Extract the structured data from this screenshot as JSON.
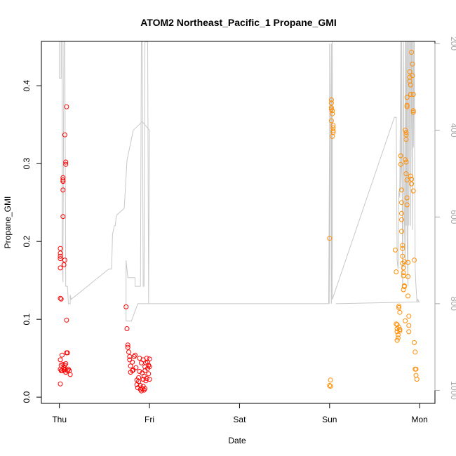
{
  "chart_data": {
    "type": "scatter",
    "title": "ATOM2 Northeast_Pacific_1 Propane_GMI",
    "xlabel": "Date",
    "ylabel": "Propane_GMI",
    "x_ticks": [
      {
        "label": "Thu",
        "day": 0
      },
      {
        "label": "Fri",
        "day": 1
      },
      {
        "label": "Sat",
        "day": 2
      },
      {
        "label": "Sun",
        "day": 3
      },
      {
        "label": "Mon",
        "day": 4
      }
    ],
    "xlim": [
      -0.2,
      4.17
    ],
    "ylim": [
      -0.008,
      0.457
    ],
    "y_ticks": [
      0.0,
      0.1,
      0.2,
      0.3,
      0.4
    ],
    "y_tick_labels": [
      "0.0",
      "0.1",
      "0.2",
      "0.3",
      "0.4"
    ],
    "right_axis": {
      "ticks": [
        200,
        400,
        600,
        800,
        1000
      ],
      "labels": [
        "200",
        "400",
        "600",
        "800",
        "1000"
      ],
      "lim_top": 195,
      "lim_bottom": 1030,
      "color": "#a6a6a6"
    },
    "grid": false,
    "colors": {
      "series1": "#ff0000",
      "series2": "#ff8c00",
      "secondary": "#c8c8c8"
    },
    "series": [
      {
        "color": "#ff0000",
        "points": [
          [
            0.01,
            0.191
          ],
          [
            0.01,
            0.185
          ],
          [
            0.01,
            0.181
          ],
          [
            0.01,
            0.178
          ],
          [
            0.01,
            0.166
          ],
          [
            0.01,
            0.127
          ],
          [
            0.02,
            0.126
          ],
          [
            0.01,
            0.048
          ],
          [
            0.02,
            0.041
          ],
          [
            0.01,
            0.036
          ],
          [
            0.01,
            0.017
          ],
          [
            0.02,
            0.034
          ],
          [
            0.04,
            0.282
          ],
          [
            0.04,
            0.279
          ],
          [
            0.04,
            0.277
          ],
          [
            0.04,
            0.266
          ],
          [
            0.04,
            0.232
          ],
          [
            0.05,
            0.17
          ],
          [
            0.06,
            0.176
          ],
          [
            0.06,
            0.337
          ],
          [
            0.07,
            0.302
          ],
          [
            0.07,
            0.299
          ],
          [
            0.08,
            0.373
          ],
          [
            0.08,
            0.099
          ],
          [
            0.03,
            0.054
          ],
          [
            0.04,
            0.042
          ],
          [
            0.05,
            0.038
          ],
          [
            0.05,
            0.035
          ],
          [
            0.06,
            0.041
          ],
          [
            0.06,
            0.035
          ],
          [
            0.07,
            0.043
          ],
          [
            0.08,
            0.057
          ],
          [
            0.09,
            0.057
          ],
          [
            0.1,
            0.036
          ],
          [
            0.11,
            0.034
          ],
          [
            0.12,
            0.029
          ],
          [
            0.07,
            0.032
          ],
          [
            0.09,
            0.034
          ],
          [
            0.03,
            0.034
          ],
          [
            0.74,
            0.116
          ],
          [
            0.75,
            0.088
          ],
          [
            0.76,
            0.067
          ],
          [
            0.76,
            0.064
          ],
          [
            0.77,
            0.058
          ],
          [
            0.78,
            0.048
          ],
          [
            0.78,
            0.052
          ],
          [
            0.79,
            0.04
          ],
          [
            0.79,
            0.032
          ],
          [
            0.81,
            0.034
          ],
          [
            0.81,
            0.045
          ],
          [
            0.82,
            0.035
          ],
          [
            0.83,
            0.052
          ],
          [
            0.84,
            0.054
          ],
          [
            0.85,
            0.038
          ],
          [
            0.86,
            0.022
          ],
          [
            0.86,
            0.016
          ],
          [
            0.87,
            0.012
          ],
          [
            0.88,
            0.025
          ],
          [
            0.88,
            0.02
          ],
          [
            0.89,
            0.05
          ],
          [
            0.89,
            0.033
          ],
          [
            0.9,
            0.01
          ],
          [
            0.9,
            0.015
          ],
          [
            0.91,
            0.044
          ],
          [
            0.91,
            0.008
          ],
          [
            0.92,
            0.031
          ],
          [
            0.92,
            0.011
          ],
          [
            0.93,
            0.023
          ],
          [
            0.93,
            0.048
          ],
          [
            0.94,
            0.009
          ],
          [
            0.94,
            0.027
          ],
          [
            0.95,
            0.039
          ],
          [
            0.95,
            0.034
          ],
          [
            0.96,
            0.021
          ],
          [
            0.96,
            0.044
          ],
          [
            0.97,
            0.024
          ],
          [
            0.97,
            0.05
          ],
          [
            0.98,
            0.037
          ],
          [
            0.98,
            0.045
          ],
          [
            0.99,
            0.041
          ],
          [
            0.99,
            0.03
          ],
          [
            1.0,
            0.049
          ],
          [
            1.0,
            0.039
          ],
          [
            1.0,
            0.023
          ],
          [
            0.93,
            0.014
          ],
          [
            0.95,
            0.011
          ]
        ]
      },
      {
        "color": "#ff8c00",
        "points": [
          [
            3.0,
            0.204
          ],
          [
            3.0,
            0.015
          ],
          [
            3.01,
            0.014
          ],
          [
            3.01,
            0.022
          ],
          [
            3.02,
            0.382
          ],
          [
            3.02,
            0.378
          ],
          [
            3.02,
            0.372
          ],
          [
            3.02,
            0.37
          ],
          [
            3.03,
            0.368
          ],
          [
            3.03,
            0.364
          ],
          [
            3.02,
            0.355
          ],
          [
            3.04,
            0.349
          ],
          [
            3.04,
            0.346
          ],
          [
            3.04,
            0.342
          ],
          [
            3.04,
            0.34
          ],
          [
            3.03,
            0.335
          ],
          [
            3.73,
            0.189
          ],
          [
            3.74,
            0.161
          ],
          [
            3.74,
            0.094
          ],
          [
            3.75,
            0.093
          ],
          [
            3.75,
            0.088
          ],
          [
            3.75,
            0.084
          ],
          [
            3.76,
            0.08
          ],
          [
            3.76,
            0.076
          ],
          [
            3.75,
            0.073
          ],
          [
            3.77,
            0.117
          ],
          [
            3.77,
            0.115
          ],
          [
            3.78,
            0.109
          ],
          [
            3.77,
            0.09
          ],
          [
            3.78,
            0.087
          ],
          [
            3.78,
            0.085
          ],
          [
            3.79,
            0.31
          ],
          [
            3.79,
            0.299
          ],
          [
            3.8,
            0.266
          ],
          [
            3.8,
            0.25
          ],
          [
            3.8,
            0.236
          ],
          [
            3.8,
            0.228
          ],
          [
            3.8,
            0.213
          ],
          [
            3.81,
            0.195
          ],
          [
            3.81,
            0.191
          ],
          [
            3.81,
            0.181
          ],
          [
            3.81,
            0.172
          ],
          [
            3.82,
            0.166
          ],
          [
            3.82,
            0.16
          ],
          [
            3.82,
            0.156
          ],
          [
            3.83,
            0.143
          ],
          [
            3.83,
            0.142
          ],
          [
            3.82,
            0.138
          ],
          [
            3.83,
            0.174
          ],
          [
            3.84,
            0.098
          ],
          [
            3.84,
            0.343
          ],
          [
            3.85,
            0.34
          ],
          [
            3.85,
            0.337
          ],
          [
            3.85,
            0.331
          ],
          [
            3.84,
            0.305
          ],
          [
            3.85,
            0.302
          ],
          [
            3.85,
            0.287
          ],
          [
            3.86,
            0.385
          ],
          [
            3.86,
            0.375
          ],
          [
            3.86,
            0.373
          ],
          [
            3.86,
            0.279
          ],
          [
            3.86,
            0.256
          ],
          [
            3.86,
            0.247
          ],
          [
            3.87,
            0.173
          ],
          [
            3.87,
            0.155
          ],
          [
            3.87,
            0.13
          ],
          [
            3.88,
            0.104
          ],
          [
            3.88,
            0.092
          ],
          [
            3.88,
            0.084
          ],
          [
            3.89,
            0.418
          ],
          [
            3.89,
            0.411
          ],
          [
            3.89,
            0.406
          ],
          [
            3.9,
            0.401
          ],
          [
            3.9,
            0.389
          ],
          [
            3.9,
            0.284
          ],
          [
            3.91,
            0.28
          ],
          [
            3.91,
            0.274
          ],
          [
            3.91,
            0.443
          ],
          [
            3.92,
            0.428
          ],
          [
            3.92,
            0.413
          ],
          [
            3.93,
            0.389
          ],
          [
            3.93,
            0.368
          ],
          [
            3.93,
            0.366
          ],
          [
            3.93,
            0.265
          ],
          [
            3.94,
            0.176
          ],
          [
            3.94,
            0.07
          ],
          [
            3.95,
            0.058
          ],
          [
            3.95,
            0.036
          ],
          [
            3.96,
            0.036
          ],
          [
            3.96,
            0.028
          ],
          [
            3.97,
            0.023
          ]
        ]
      }
    ],
    "secondary_line": {
      "color": "#c8c8c8",
      "axis": "right",
      "points": [
        [
          0.0,
          196
        ],
        [
          0.0,
          200
        ],
        [
          0.0,
          280
        ],
        [
          0.02,
          280
        ],
        [
          0.02,
          196
        ],
        [
          0.03,
          196
        ],
        [
          0.03,
          690
        ],
        [
          0.04,
          750
        ],
        [
          0.04,
          690
        ],
        [
          0.05,
          196
        ],
        [
          0.06,
          196
        ],
        [
          0.07,
          760
        ],
        [
          0.08,
          760
        ],
        [
          0.09,
          760
        ],
        [
          0.1,
          800
        ],
        [
          0.11,
          800
        ],
        [
          0.12,
          800
        ],
        [
          0.12,
          780
        ],
        [
          0.13,
          790
        ],
        [
          0.55,
          720
        ],
        [
          0.58,
          720
        ],
        [
          0.59,
          640
        ],
        [
          0.6,
          630
        ],
        [
          0.61,
          620
        ],
        [
          0.62,
          620
        ],
        [
          0.63,
          600
        ],
        [
          0.64,
          595
        ],
        [
          0.72,
          580
        ],
        [
          0.75,
          470
        ],
        [
          0.82,
          400
        ],
        [
          0.92,
          380
        ],
        [
          1.0,
          400
        ],
        [
          0.99,
          800
        ],
        [
          0.98,
          196
        ],
        [
          0.95,
          196
        ],
        [
          0.94,
          760
        ],
        [
          0.93,
          760
        ],
        [
          0.92,
          196
        ],
        [
          0.91,
          196
        ],
        [
          0.9,
          760
        ],
        [
          0.84,
          760
        ],
        [
          0.84,
          740
        ],
        [
          0.76,
          740
        ],
        [
          0.74,
          700
        ],
        [
          0.74,
          840
        ],
        [
          0.8,
          840
        ],
        [
          0.87,
          800
        ],
        [
          2.99,
          800
        ],
        [
          3.0,
          400
        ],
        [
          3.0,
          200
        ],
        [
          3.0,
          800
        ],
        [
          3.01,
          400
        ],
        [
          3.02,
          200
        ],
        [
          3.02,
          800
        ],
        [
          3.03,
          196
        ],
        [
          3.03,
          790
        ],
        [
          3.72,
          370
        ],
        [
          3.73,
          370
        ],
        [
          3.74,
          370
        ],
        [
          3.75,
          700
        ],
        [
          3.76,
          720
        ],
        [
          3.77,
          540
        ],
        [
          3.78,
          555
        ],
        [
          3.78,
          530
        ],
        [
          3.79,
          196
        ],
        [
          3.79,
          540
        ],
        [
          3.8,
          470
        ],
        [
          3.8,
          196
        ],
        [
          3.81,
          760
        ],
        [
          3.82,
          470
        ],
        [
          3.82,
          196
        ],
        [
          3.83,
          600
        ],
        [
          3.84,
          720
        ],
        [
          3.84,
          196
        ],
        [
          3.85,
          196
        ],
        [
          3.85,
          620
        ],
        [
          3.86,
          196
        ],
        [
          3.86,
          640
        ],
        [
          3.87,
          760
        ],
        [
          3.87,
          196
        ],
        [
          3.88,
          196
        ],
        [
          3.88,
          620
        ],
        [
          3.89,
          196
        ],
        [
          3.9,
          196
        ],
        [
          3.9,
          620
        ],
        [
          3.91,
          196
        ],
        [
          3.92,
          630
        ],
        [
          3.92,
          196
        ],
        [
          3.93,
          196
        ],
        [
          3.93,
          440
        ],
        [
          3.94,
          196
        ],
        [
          3.95,
          720
        ],
        [
          3.96,
          760
        ],
        [
          3.97,
          796
        ],
        [
          3.98,
          790
        ],
        [
          3.99,
          795
        ],
        [
          4.0,
          796
        ],
        [
          3.07,
          800
        ]
      ]
    }
  }
}
